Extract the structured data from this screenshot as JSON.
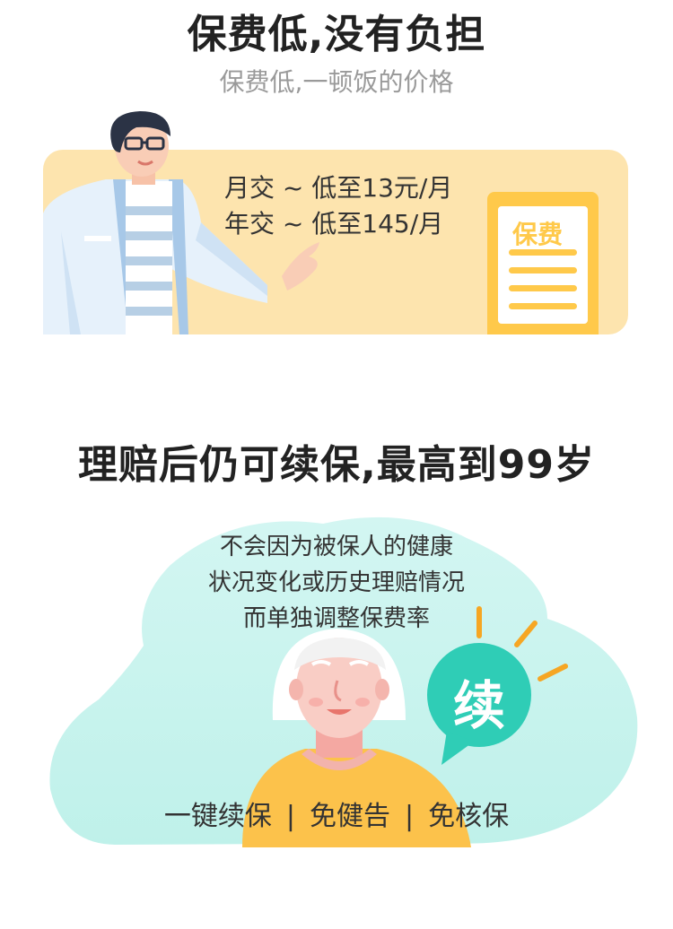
{
  "section1": {
    "title": "保费低,没有负担",
    "subtitle": "保费低,一顿饭的价格",
    "monthly": "月交 ~ 低至13元/月",
    "yearly": "年交 ~ 低至145/月",
    "doc_tag": "保费"
  },
  "section2": {
    "title": "理赔后仍可续保,最高到99岁",
    "caption_lines": [
      "不会因为被保人的健康",
      "状况变化或历史理赔情况",
      "而单独调整保费率"
    ],
    "badge": "续",
    "features": [
      "一键续保",
      "免健告",
      "免核保"
    ],
    "separator": "|"
  },
  "colors": {
    "card_bg": "#fde4ae",
    "accent_orange": "#ffc94a",
    "teal": "#2fcdb6",
    "mint_blob": "#c9f3ef",
    "coat": "#e6f1fb",
    "shirt_yellow": "#fcc24b"
  },
  "icons": {
    "doctor": "doctor-illustration",
    "document": "document-icon",
    "grandma": "grandma-illustration",
    "badge": "speech-bubble-badge"
  }
}
